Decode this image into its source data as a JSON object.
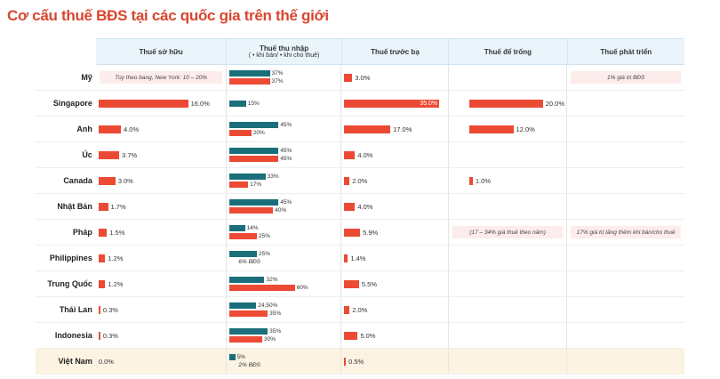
{
  "title": "Cơ cấu thuế BĐS tại các quốc gia trên thế giới",
  "chart_data": {
    "type": "bar",
    "title": "Cơ cấu thuế BĐS tại các quốc gia trên thế giới",
    "columns": [
      "Thuế sở hữu",
      "Thuế thu nhập",
      "Thuế trước bạ",
      "Thuế để trống",
      "Thuế phát triển"
    ],
    "income_subtitle": "( • khi bán/ • khi cho thuê)",
    "colors": {
      "sale": "#ec4a34",
      "rent": "#1b6f7a",
      "highlight_row": "#fdf3e3",
      "note_bg": "#fdecec"
    },
    "rows": [
      {
        "country": "Mỹ",
        "ownership": null,
        "ownership_note": "Tùy theo bang, New York: 10 – 20%",
        "income_rent": 37,
        "income_rent_label": "37%",
        "income_sale": 37,
        "income_sale_label": "37%",
        "registration": 3.0,
        "registration_label": "3.0%",
        "vacancy": null,
        "vacancy_label": "",
        "development_note": "1% giá trị BĐS"
      },
      {
        "country": "Singapore",
        "ownership": 16.0,
        "ownership_label": "16.0%",
        "income_rent": 15,
        "income_rent_label": "15%",
        "income_sale": null,
        "registration": 35.0,
        "registration_label": "35.0%",
        "vacancy": 20.0,
        "vacancy_label": "20.0%"
      },
      {
        "country": "Anh",
        "ownership": 4.0,
        "ownership_label": "4.0%",
        "income_rent": 45,
        "income_rent_label": "45%",
        "income_sale": 20,
        "income_sale_label": "20%",
        "registration": 17.0,
        "registration_label": "17.0%",
        "vacancy": 12.0,
        "vacancy_label": "12.0%"
      },
      {
        "country": "Úc",
        "ownership": 3.7,
        "ownership_label": "3.7%",
        "income_rent": 45,
        "income_rent_label": "45%",
        "income_sale": 45,
        "income_sale_label": "45%",
        "registration": 4.0,
        "registration_label": "4.0%"
      },
      {
        "country": "Canada",
        "ownership": 3.0,
        "ownership_label": "3.0%",
        "income_rent": 33,
        "income_rent_label": "33%",
        "income_sale": 17,
        "income_sale_label": "17%",
        "registration": 2.0,
        "registration_label": "2.0%",
        "vacancy": 1.0,
        "vacancy_label": "1.0%"
      },
      {
        "country": "Nhật Bản",
        "ownership": 1.7,
        "ownership_label": "1.7%",
        "income_rent": 45,
        "income_rent_label": "45%",
        "income_sale": 40,
        "income_sale_label": "40%",
        "registration": 4.0,
        "registration_label": "4.0%"
      },
      {
        "country": "Pháp",
        "ownership": 1.5,
        "ownership_label": "1.5%",
        "income_rent": 14,
        "income_rent_label": "14%",
        "income_sale": 25,
        "income_sale_label": "25%",
        "registration": 5.9,
        "registration_label": "5.9%",
        "vacancy_note": "(17 – 34% giá thuê theo năm)",
        "development_note": "17% giá trị tăng thêm khi bán/cho thuê"
      },
      {
        "country": "Philippines",
        "ownership": 1.2,
        "ownership_label": "1.2%",
        "income_rent": 25,
        "income_rent_label": "25%",
        "income_sale_note": "6% BĐS",
        "registration": 1.4,
        "registration_label": "1.4%"
      },
      {
        "country": "Trung Quốc",
        "ownership": 1.2,
        "ownership_label": "1.2%",
        "income_rent": 32,
        "income_rent_label": "32%",
        "income_sale": 60,
        "income_sale_label": "60%",
        "registration": 5.5,
        "registration_label": "5.5%"
      },
      {
        "country": "Thái Lan",
        "ownership": 0.3,
        "ownership_label": "0.3%",
        "income_rent": 24.5,
        "income_rent_label": "24,50%",
        "income_sale": 35,
        "income_sale_label": "35%",
        "registration": 2.0,
        "registration_label": "2.0%"
      },
      {
        "country": "Indonesia",
        "ownership": 0.3,
        "ownership_label": "0.3%",
        "income_rent": 35,
        "income_rent_label": "35%",
        "income_sale": 30,
        "income_sale_label": "30%",
        "registration": 5.0,
        "registration_label": "5.0%"
      },
      {
        "country": "Việt Nam",
        "highlight": true,
        "ownership": 0.0,
        "ownership_label": "0.0%",
        "income_rent": 5,
        "income_rent_label": "5%",
        "income_sale_note": "2% BĐS",
        "registration": 0.5,
        "registration_label": "0.5%"
      }
    ]
  }
}
